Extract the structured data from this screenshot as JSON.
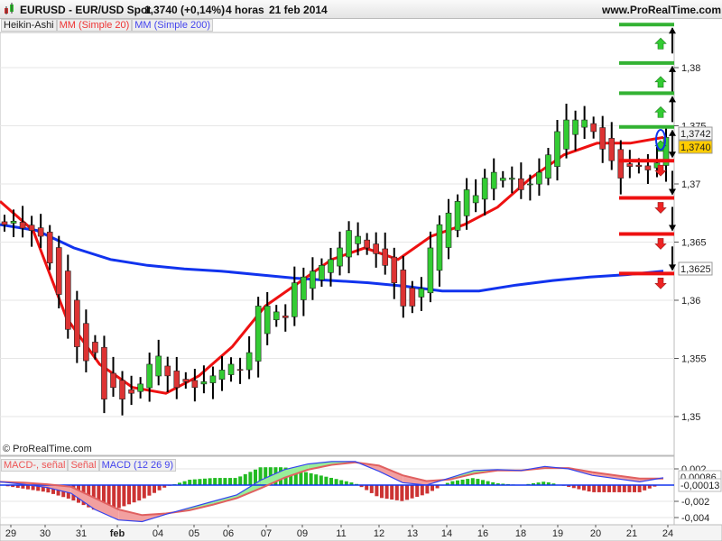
{
  "header": {
    "symbol": "EURUSD - EUR/USD Spot",
    "price": "1,3740 (+0,14%)",
    "timeframe": "4 horas",
    "date": "21 feb 2014",
    "site": "www.ProRealTime.com"
  },
  "legend": {
    "chart_type": "Heikin-Ashi",
    "ma20": "MM (Simple 20)",
    "ma200": "MM (Simple 200)"
  },
  "copyright": "© ProRealTime.com",
  "colors": {
    "up": "#33cc33",
    "down": "#dd3333",
    "ma20": "#ee1111",
    "ma200": "#1133ee",
    "current": "#ffcc00"
  },
  "price_axis": {
    "ticks": [
      "1,38",
      "1,375",
      "1,37",
      "1,365",
      "1,36",
      "1,355",
      "1,35"
    ],
    "tick_values": [
      1.38,
      1.375,
      1.37,
      1.365,
      1.36,
      1.355,
      1.35
    ],
    "ma20_label": "1,3742",
    "price_label": "1,3740",
    "ma200_label": "1,3625"
  },
  "x_axis": {
    "labels": [
      "29",
      "30",
      "31",
      "feb",
      "04",
      "05",
      "06",
      "07",
      "09",
      "11",
      "12",
      "13",
      "14",
      "16",
      "18",
      "19",
      "20",
      "21",
      "24"
    ]
  },
  "chart_data": {
    "type": "candlestick",
    "closes": [
      1.3665,
      1.3668,
      1.3662,
      1.366,
      1.3655,
      1.3632,
      1.3605,
      1.3575,
      1.356,
      1.3548,
      1.3555,
      1.3515,
      1.3525,
      1.3515,
      1.352,
      1.3528,
      1.3545,
      1.3552,
      1.3535,
      1.3525,
      1.353,
      1.3525,
      1.353,
      1.3535,
      1.354,
      1.3545,
      1.354,
      1.3555,
      1.3595,
      1.3595,
      1.359,
      1.3585,
      1.3615,
      1.362,
      1.3625,
      1.363,
      1.3635,
      1.3645,
      1.366,
      1.3655,
      1.3645,
      1.364,
      1.363,
      1.3615,
      1.3595,
      1.3595,
      1.361,
      1.3645,
      1.3665,
      1.3675,
      1.3685,
      1.3695,
      1.369,
      1.3705,
      1.371,
      1.3705,
      1.3705,
      1.3695,
      1.37,
      1.371,
      1.3725,
      1.3745,
      1.3755,
      1.3755,
      1.3755,
      1.3745,
      1.373,
      1.372,
      1.3705,
      1.3715,
      1.3715,
      1.3712,
      1.3718,
      1.374
    ],
    "ma20": [
      1.3685,
      1.366,
      1.3585,
      1.3545,
      1.3525,
      1.352,
      1.3535,
      1.356,
      1.3595,
      1.3615,
      1.3635,
      1.3645,
      1.3635,
      1.3655,
      1.3665,
      1.368,
      1.3705,
      1.3725,
      1.3735,
      1.3735,
      1.374
    ],
    "ma200": [
      1.3665,
      1.366,
      1.3645,
      1.3635,
      1.363,
      1.3627,
      1.3625,
      1.3622,
      1.3619,
      1.3617,
      1.3615,
      1.3612,
      1.3608,
      1.3608,
      1.3613,
      1.3617,
      1.362,
      1.3622,
      1.3625
    ],
    "targets_up": [
      1.3837,
      1.3804,
      1.3778,
      1.3749
    ],
    "targets_down": [
      1.372,
      1.3688,
      1.3657,
      1.3623
    ],
    "ylim": [
      1.3465,
      1.3845
    ]
  },
  "macd": {
    "legend": {
      "hist": "MACD-, señal",
      "signal": "Señal",
      "macd": "MACD (12 26 9)"
    },
    "ticks": [
      "0,002",
      "-0,002",
      "-0,004"
    ],
    "tick_values": [
      0.002,
      -0.002,
      -0.004
    ],
    "macd_label": "0,00086",
    "hist_label": "-0,00013",
    "macd": [
      0.0004,
      0.0001,
      -0.0003,
      -0.001,
      -0.003,
      -0.0043,
      -0.0045,
      -0.0036,
      -0.0028,
      -0.002,
      -0.0012,
      0.0006,
      0.0019,
      0.0026,
      0.0029,
      0.0029,
      0.0017,
      0.0003,
      0.0,
      0.0009,
      0.0018,
      0.0019,
      0.0018,
      0.0023,
      0.002,
      0.0012,
      0.0008,
      0.0004,
      0.0009
    ],
    "signal": [
      0.0004,
      0.0003,
      0.0001,
      -0.0002,
      -0.0016,
      -0.003,
      -0.0037,
      -0.0035,
      -0.0031,
      -0.0024,
      -0.0016,
      -0.0004,
      0.0009,
      0.0019,
      0.0025,
      0.0028,
      0.0024,
      0.0012,
      0.0005,
      0.0007,
      0.0014,
      0.0018,
      0.0018,
      0.0021,
      0.0021,
      0.0016,
      0.0012,
      0.0008,
      0.0008
    ]
  }
}
